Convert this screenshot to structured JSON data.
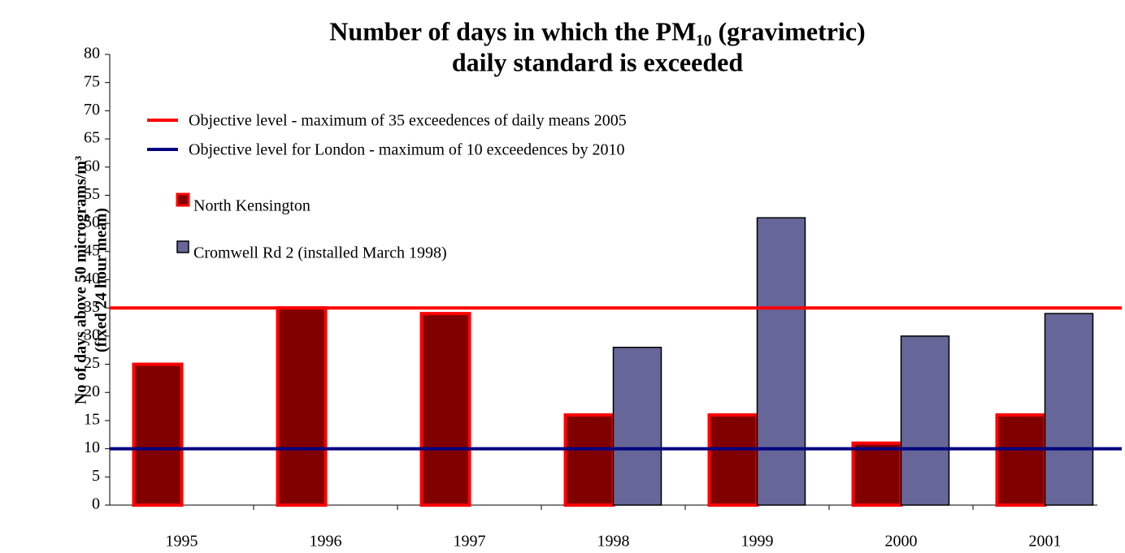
{
  "chart_data": {
    "type": "bar",
    "title_lines": [
      "Number of days in which the PM₁₀ (gravimetric)",
      "daily standard is exceeded"
    ],
    "y_label_lines": [
      "No of days above 50 micrograms/m³",
      "(fixed 24 hour mean)"
    ],
    "categories": [
      "1995",
      "1996",
      "1997",
      "1998",
      "1999",
      "2000",
      "2001"
    ],
    "series": [
      {
        "name": "North Kensington",
        "color": "#800000",
        "edge": "#ff0000",
        "values": [
          25,
          35,
          34,
          16,
          16,
          11,
          16
        ]
      },
      {
        "name": "Cromwell Rd 2 (installed March 1998)",
        "color": "#666699",
        "edge": "#000000",
        "values": [
          null,
          null,
          null,
          28,
          51,
          30,
          34
        ]
      }
    ],
    "reference_lines": [
      {
        "name": "Objective level - maximum of 35 exceedences of daily means 2005",
        "value": 35,
        "color": "#ff0000"
      },
      {
        "name": "Objective level for London - maximum of 10 exceedences by 2010",
        "value": 10,
        "color": "#000080"
      }
    ],
    "ylim": [
      0,
      80
    ],
    "yticks": [
      0,
      5,
      10,
      15,
      20,
      25,
      30,
      35,
      40,
      45,
      50,
      55,
      60,
      65,
      70,
      75,
      80
    ]
  }
}
